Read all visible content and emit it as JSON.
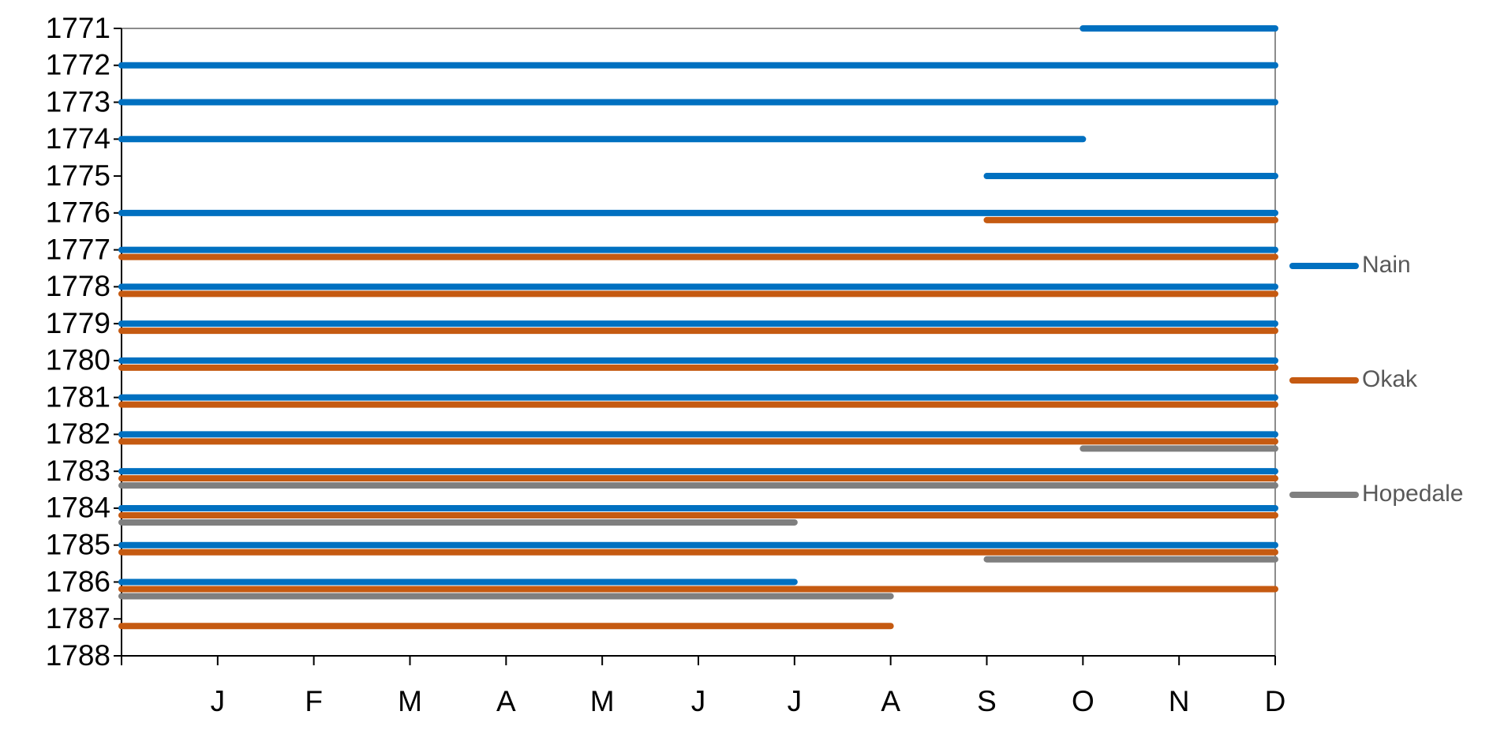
{
  "chart_data": {
    "type": "range",
    "xlim": [
      0,
      12
    ],
    "xticks": [
      {
        "value": 1,
        "label": "J"
      },
      {
        "value": 2,
        "label": "F"
      },
      {
        "value": 3,
        "label": "M"
      },
      {
        "value": 4,
        "label": "A"
      },
      {
        "value": 5,
        "label": "M"
      },
      {
        "value": 6,
        "label": "J"
      },
      {
        "value": 7,
        "label": "J"
      },
      {
        "value": 8,
        "label": "A"
      },
      {
        "value": 9,
        "label": "S"
      },
      {
        "value": 10,
        "label": "O"
      },
      {
        "value": 11,
        "label": "N"
      },
      {
        "value": 12,
        "label": "D"
      }
    ],
    "ylim": [
      1771,
      1788
    ],
    "y_reversed": true,
    "yticks": [
      1771,
      1772,
      1773,
      1774,
      1775,
      1776,
      1777,
      1778,
      1779,
      1780,
      1781,
      1782,
      1783,
      1784,
      1785,
      1786,
      1787,
      1788
    ],
    "legend": "right",
    "series": [
      {
        "name": "Nain",
        "color": "#0070c0",
        "years": [
          1771,
          1772,
          1773,
          1774,
          1775,
          1776,
          1777,
          1778,
          1779,
          1780,
          1781,
          1782,
          1783,
          1784,
          1785,
          1786
        ],
        "values": [
          [
            10,
            12
          ],
          [
            0,
            12
          ],
          [
            0,
            12
          ],
          [
            0,
            10
          ],
          [
            9,
            12
          ],
          [
            0,
            12
          ],
          [
            0,
            12
          ],
          [
            0,
            12
          ],
          [
            0,
            12
          ],
          [
            0,
            12
          ],
          [
            0,
            12
          ],
          [
            0,
            12
          ],
          [
            0,
            12
          ],
          [
            0,
            12
          ],
          [
            0,
            12
          ],
          [
            0,
            7
          ]
        ]
      },
      {
        "name": "Okak",
        "color": "#c55a11",
        "years": [
          1776,
          1777,
          1778,
          1779,
          1780,
          1781,
          1782,
          1783,
          1784,
          1785,
          1786,
          1787
        ],
        "values": [
          [
            9,
            12
          ],
          [
            0,
            12
          ],
          [
            0,
            12
          ],
          [
            0,
            12
          ],
          [
            0,
            12
          ],
          [
            0,
            12
          ],
          [
            0,
            12
          ],
          [
            0,
            12
          ],
          [
            0,
            12
          ],
          [
            0,
            12
          ],
          [
            0,
            12
          ],
          [
            0,
            8
          ]
        ]
      },
      {
        "name": "Hopedale",
        "color": "#7f7f7f",
        "years": [
          1782,
          1783,
          1784,
          1785,
          1786
        ],
        "values": [
          [
            10,
            12
          ],
          [
            0,
            12
          ],
          [
            0,
            7
          ],
          [
            9,
            12
          ],
          [
            0,
            8
          ]
        ]
      }
    ]
  }
}
